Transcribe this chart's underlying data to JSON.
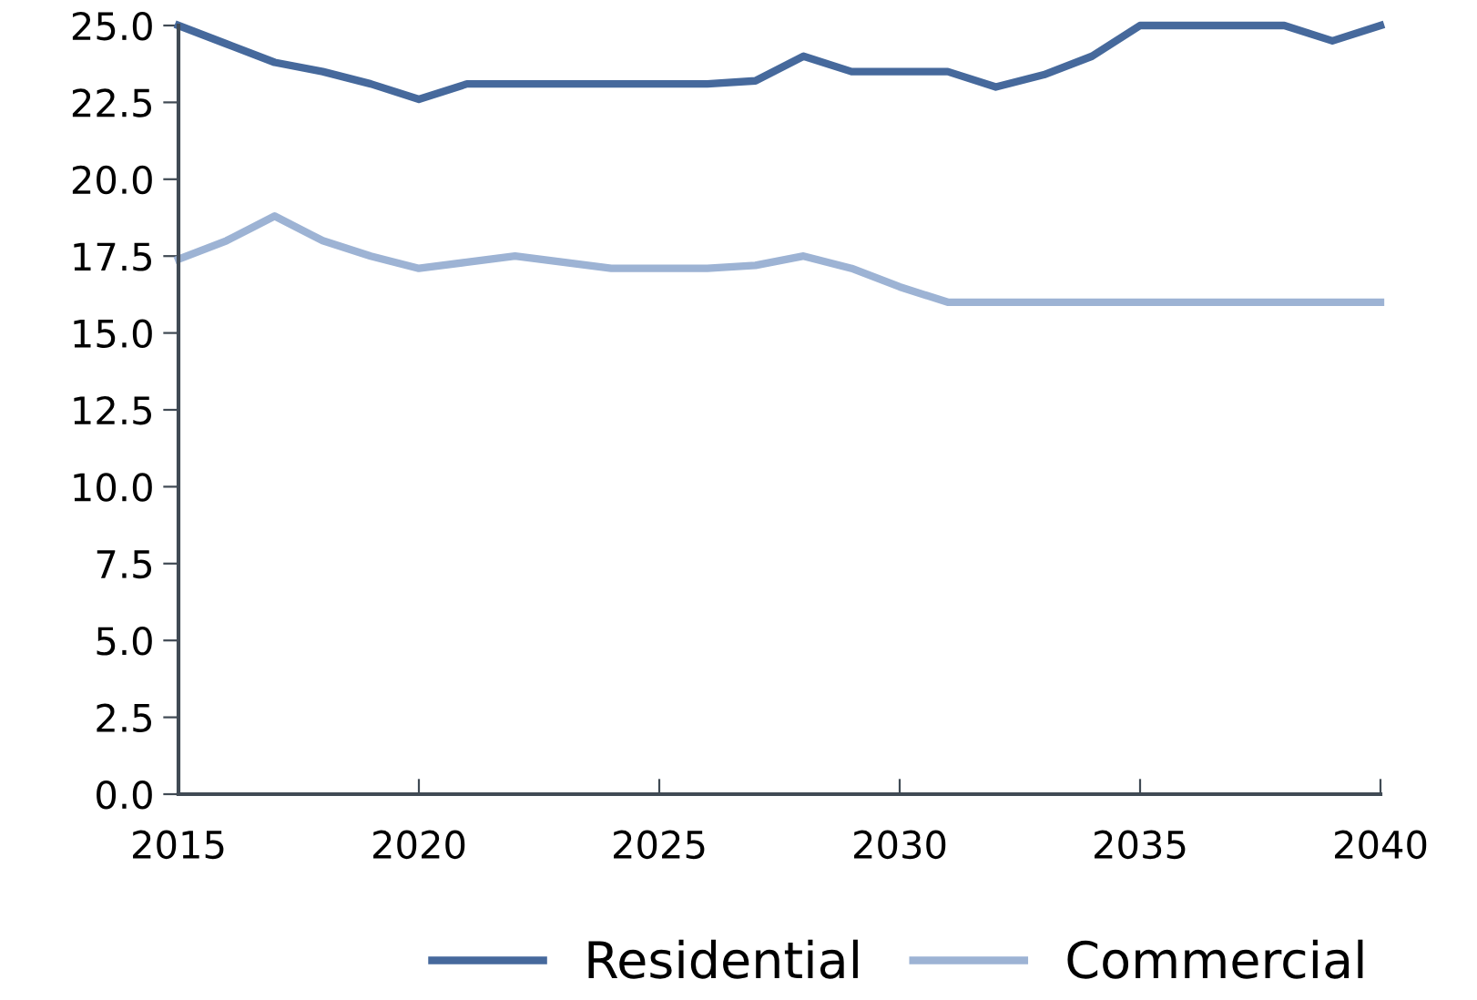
{
  "chart_data": {
    "type": "line",
    "x": [
      2015,
      2016,
      2017,
      2018,
      2019,
      2020,
      2021,
      2022,
      2023,
      2024,
      2025,
      2026,
      2027,
      2028,
      2029,
      2030,
      2031,
      2032,
      2033,
      2034,
      2035,
      2036,
      2037,
      2038,
      2039,
      2040
    ],
    "series": [
      {
        "name": "Residential",
        "color": "#46699c",
        "values": [
          25.0,
          24.4,
          23.8,
          23.5,
          23.1,
          22.6,
          23.1,
          23.1,
          23.1,
          23.1,
          23.1,
          23.1,
          23.2,
          24.0,
          23.5,
          23.5,
          23.5,
          23.0,
          23.4,
          24.0,
          25.0,
          25.0,
          25.0,
          25.0,
          24.5,
          25.0
        ]
      },
      {
        "name": "Commercial",
        "color": "#9db3d4",
        "values": [
          17.4,
          18.0,
          18.8,
          18.0,
          17.5,
          17.1,
          17.3,
          17.5,
          17.3,
          17.1,
          17.1,
          17.1,
          17.2,
          17.5,
          17.1,
          16.5,
          16.0,
          16.0,
          16.0,
          16.0,
          16.0,
          16.0,
          16.0,
          16.0,
          16.0,
          16.0
        ]
      }
    ],
    "xlim": [
      2015,
      2040
    ],
    "xticks": [
      2015,
      2020,
      2025,
      2030,
      2035,
      2040
    ],
    "ylim": [
      0,
      25
    ],
    "yticks": [
      {
        "value": 0,
        "label": "0.0"
      },
      {
        "value": 2.5,
        "label": "2.5"
      },
      {
        "value": 5,
        "label": "5.0"
      },
      {
        "value": 7.5,
        "label": "7.5"
      },
      {
        "value": 10,
        "label": "10.0"
      },
      {
        "value": 12.5,
        "label": "12.5"
      },
      {
        "value": 15,
        "label": "15.0"
      },
      {
        "value": 17.5,
        "label": "17.5"
      },
      {
        "value": 20,
        "label": "20.0"
      },
      {
        "value": 22.5,
        "label": "22.5"
      },
      {
        "value": 25,
        "label": "25.0"
      }
    ],
    "grid": false,
    "legend": "bottom",
    "line_style": "solid",
    "marker": "none"
  }
}
